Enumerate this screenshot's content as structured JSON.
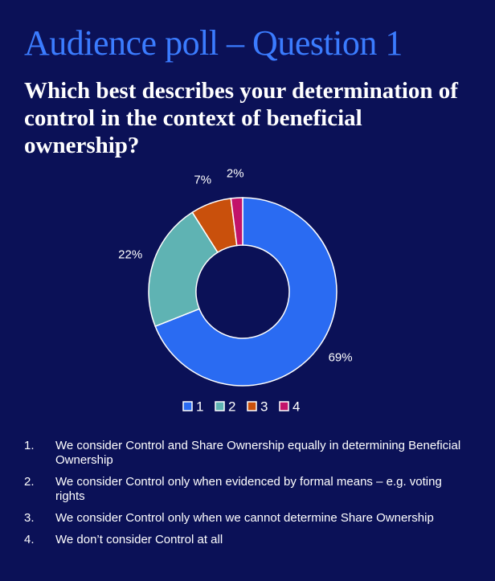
{
  "header": {
    "title": "Audience poll – Question 1",
    "question": "Which best describes your determination of control in the context of beneficial ownership?"
  },
  "chart_data": {
    "type": "donut",
    "categories": [
      "1",
      "2",
      "3",
      "4"
    ],
    "values": [
      69,
      22,
      7,
      2
    ],
    "value_labels": [
      "69%",
      "22%",
      "7%",
      "2%"
    ],
    "colors": [
      "#2a6bf2",
      "#5fb3b3",
      "#c9500c",
      "#c2136a"
    ],
    "legend": "bottom"
  },
  "answers": [
    {
      "number": "1.",
      "text": "We consider Control and Share Ownership equally in determining Beneficial Ownership"
    },
    {
      "number": "2.",
      "text": "We consider Control only when evidenced by formal means – e.g. voting rights"
    },
    {
      "number": "3.",
      "text": "We consider Control only when we cannot determine Share Ownership"
    },
    {
      "number": "4.",
      "text": "We don’t consider Control at all"
    }
  ]
}
